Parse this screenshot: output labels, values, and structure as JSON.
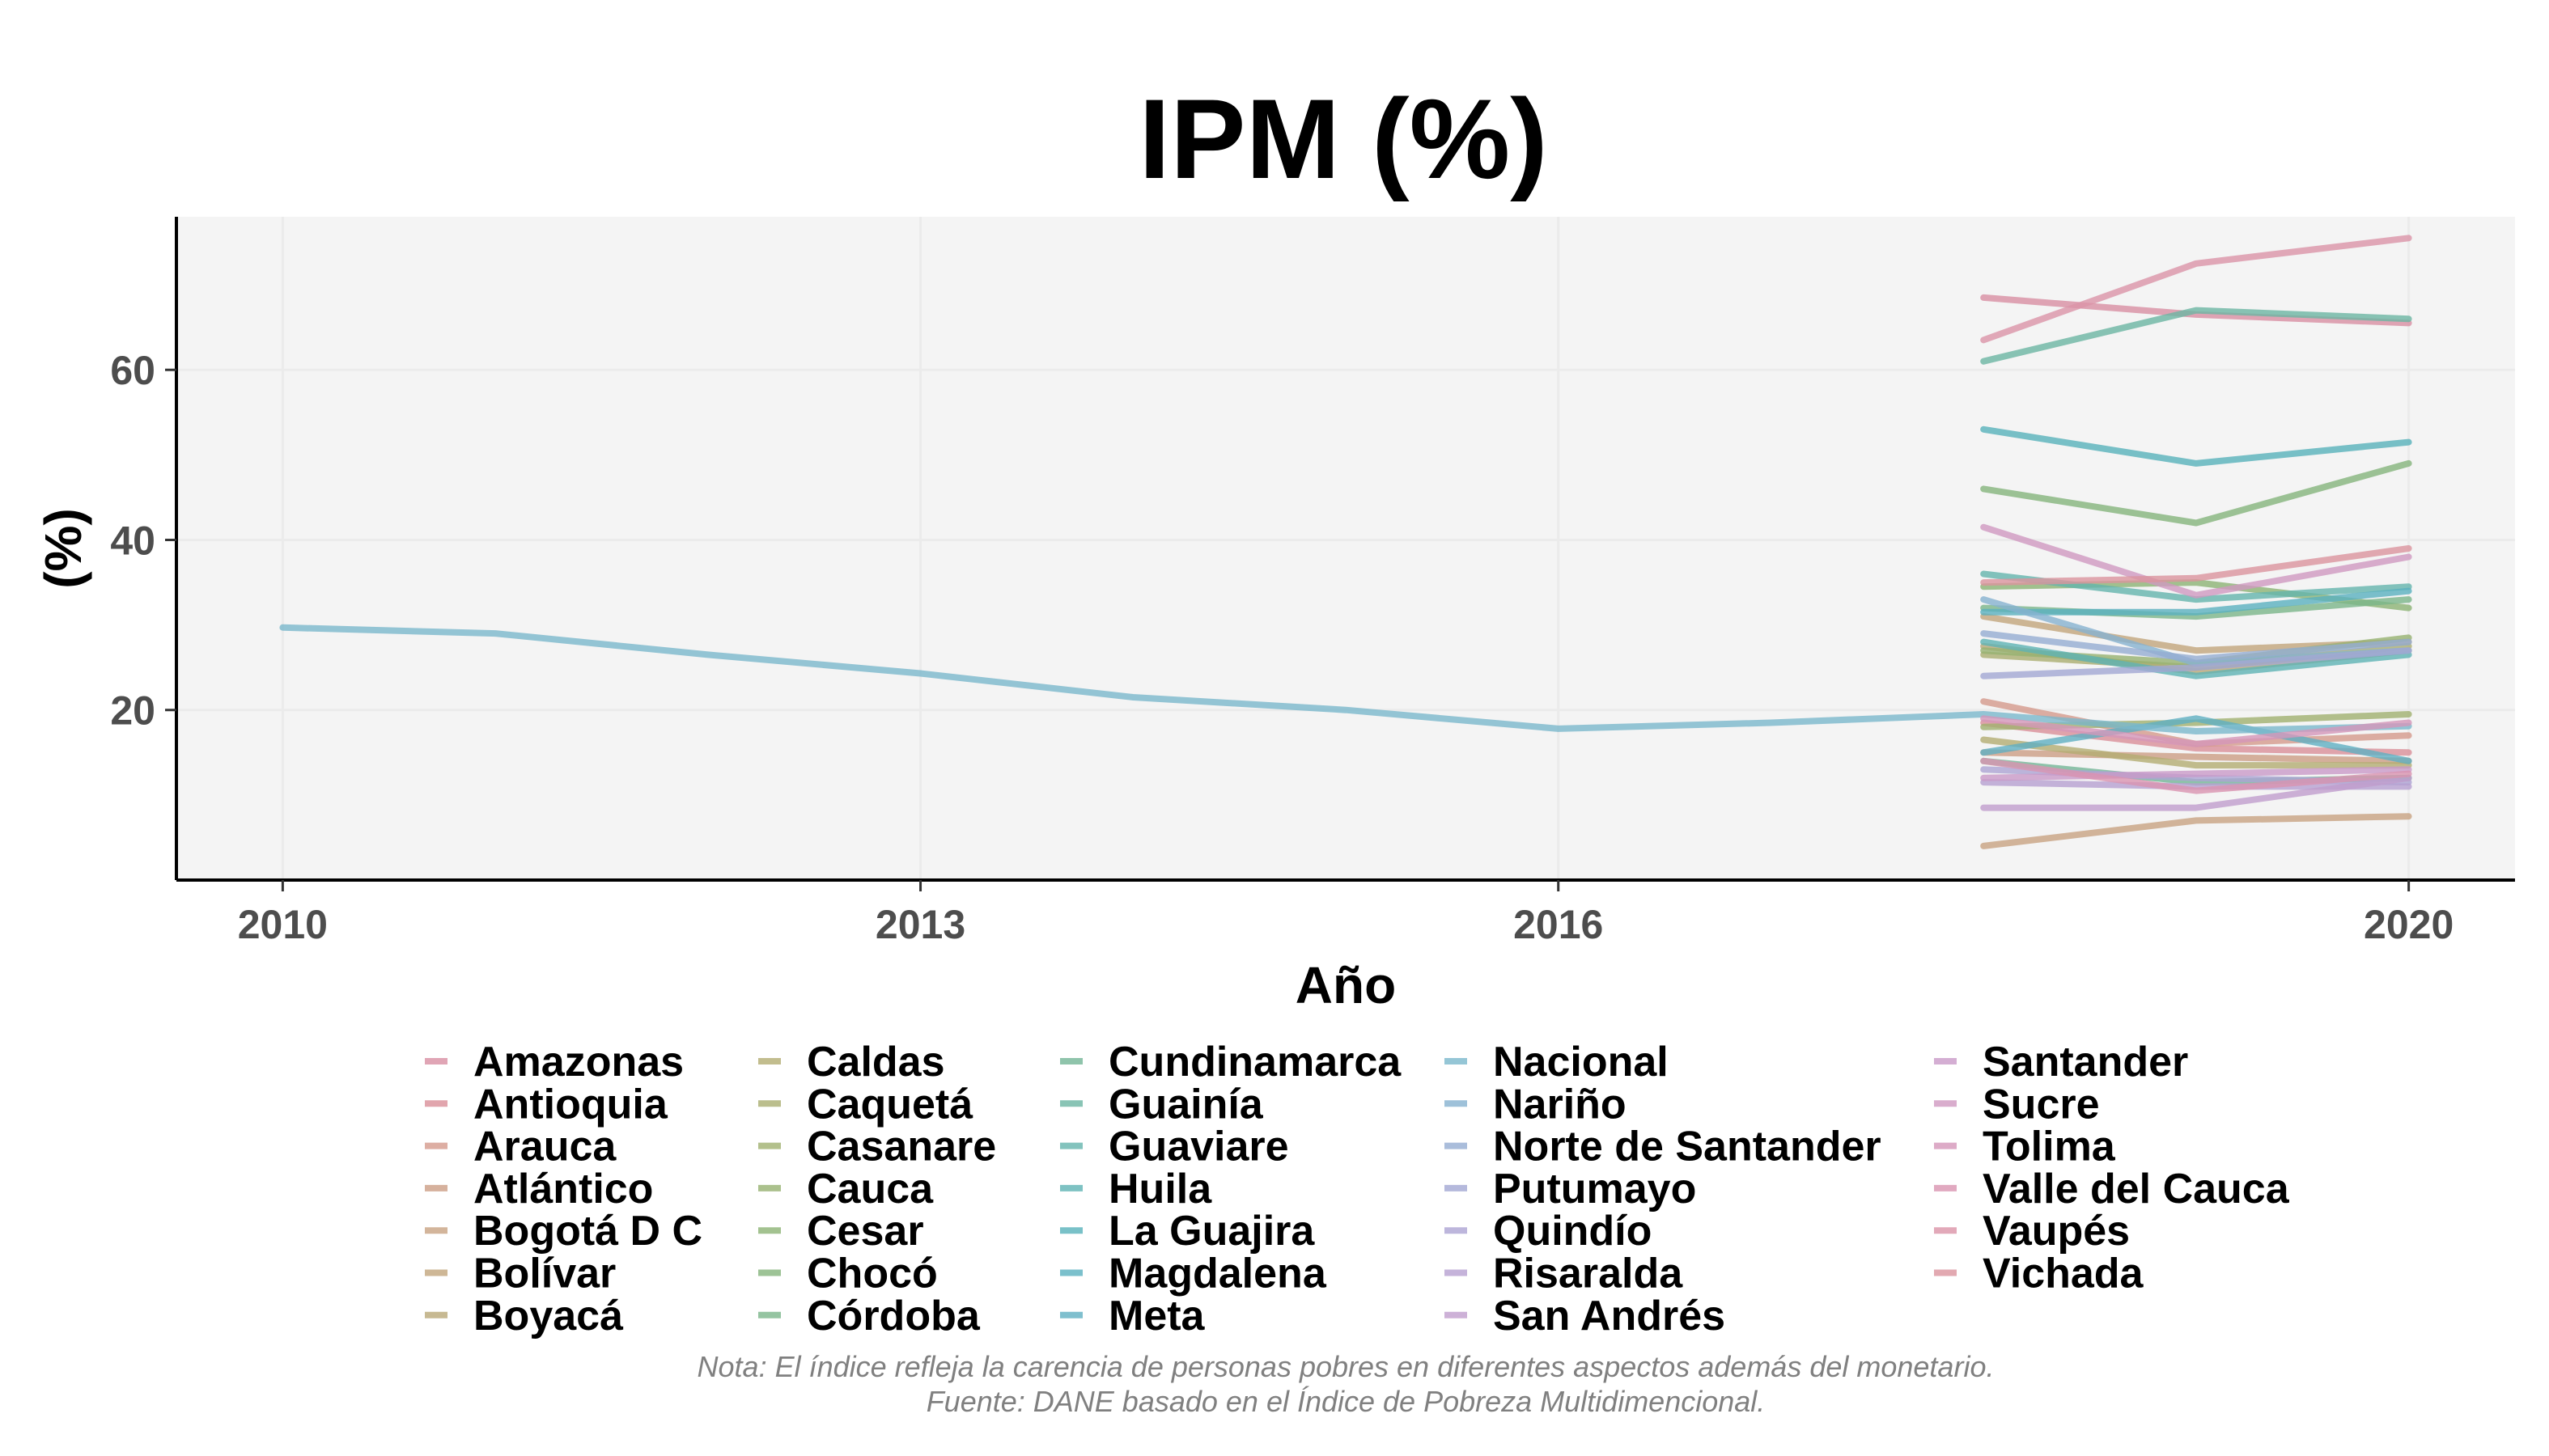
{
  "chart_data": {
    "type": "line",
    "title": "IPM (%)",
    "xlabel": "Año",
    "ylabel": "(%)",
    "xlim": [
      2009.5,
      2020.5
    ],
    "ylim": [
      0,
      78
    ],
    "xticks": [
      "2010",
      "2013",
      "2016",
      "2020"
    ],
    "yticks": [
      "20",
      "40",
      "60"
    ],
    "grid": true,
    "legend_position": "bottom",
    "series": [
      {
        "name": "Amazonas",
        "color": "#d88fa3",
        "x": [
          2018,
          2019,
          2020
        ],
        "y": [
          68.5,
          66.5,
          65.5
        ]
      },
      {
        "name": "Antioquia",
        "color": "#d98f99",
        "x": [
          2018,
          2019,
          2020
        ],
        "y": [
          18.5,
          15.5,
          15.0
        ]
      },
      {
        "name": "Arauca",
        "color": "#d49a8c",
        "x": [
          2018,
          2019,
          2020
        ],
        "y": [
          21.0,
          16.0,
          17.0
        ]
      },
      {
        "name": "Atlántico",
        "color": "#cc9e84",
        "x": [
          2018,
          2019,
          2020
        ],
        "y": [
          15.0,
          14.5,
          14.0
        ]
      },
      {
        "name": "Bogotá D C",
        "color": "#c8a282",
        "x": [
          2018,
          2019,
          2020
        ],
        "y": [
          4.0,
          7.0,
          7.5
        ]
      },
      {
        "name": "Bolívar",
        "color": "#c2a57c",
        "x": [
          2018,
          2019,
          2020
        ],
        "y": [
          31.0,
          27.0,
          28.0
        ]
      },
      {
        "name": "Boyacá",
        "color": "#b9a877",
        "x": [
          2018,
          2019,
          2020
        ],
        "y": [
          27.5,
          24.5,
          27.0
        ]
      },
      {
        "name": "Caldas",
        "color": "#b3ac72",
        "x": [
          2018,
          2019,
          2020
        ],
        "y": [
          16.5,
          13.5,
          13.5
        ]
      },
      {
        "name": "Caquetá",
        "color": "#aaae70",
        "x": [
          2018,
          2019,
          2020
        ],
        "y": [
          26.5,
          25.0,
          27.5
        ]
      },
      {
        "name": "Casanare",
        "color": "#a0b06f",
        "x": [
          2018,
          2019,
          2020
        ],
        "y": [
          18.0,
          18.5,
          19.5
        ]
      },
      {
        "name": "Cauca",
        "color": "#96b270",
        "x": [
          2018,
          2019,
          2020
        ],
        "y": [
          27.0,
          25.5,
          28.5
        ]
      },
      {
        "name": "Cesar",
        "color": "#8cb374",
        "x": [
          2018,
          2019,
          2020
        ],
        "y": [
          34.5,
          35.0,
          32.0
        ]
      },
      {
        "name": "Chocó",
        "color": "#84b47c",
        "x": [
          2018,
          2019,
          2020
        ],
        "y": [
          46.0,
          42.0,
          49.0
        ]
      },
      {
        "name": "Córdoba",
        "color": "#7bb589",
        "x": [
          2018,
          2019,
          2020
        ],
        "y": [
          32.0,
          31.0,
          33.0
        ]
      },
      {
        "name": "Cundinamarca",
        "color": "#73b596",
        "x": [
          2018,
          2019,
          2020
        ],
        "y": [
          14.0,
          11.5,
          12.0
        ]
      },
      {
        "name": "Guainía",
        "color": "#6cb5a2",
        "x": [
          2018,
          2019,
          2020
        ],
        "y": [
          61.0,
          67.0,
          66.0
        ]
      },
      {
        "name": "Guaviare",
        "color": "#64b4ad",
        "x": [
          2018,
          2019,
          2020
        ],
        "y": [
          36.0,
          33.0,
          34.5
        ]
      },
      {
        "name": "Huila",
        "color": "#5eb3b4",
        "x": [
          2018,
          2019,
          2020
        ],
        "y": [
          28.0,
          24.0,
          26.5
        ]
      },
      {
        "name": "La Guajira",
        "color": "#58b2ba",
        "x": [
          2018,
          2019,
          2020
        ],
        "y": [
          53.0,
          49.0,
          51.5
        ]
      },
      {
        "name": "Magdalena",
        "color": "#5ab0bf",
        "x": [
          2018,
          2019,
          2020
        ],
        "y": [
          31.5,
          31.5,
          34.0
        ]
      },
      {
        "name": "Meta",
        "color": "#5fafc2",
        "x": [
          2018,
          2019,
          2020
        ],
        "y": [
          15.0,
          19.0,
          14.0
        ]
      },
      {
        "name": "Nacional",
        "color": "#7ab8cc",
        "x": [
          2010,
          2011,
          2012,
          2013,
          2014,
          2015,
          2016,
          2017,
          2018,
          2019,
          2020
        ],
        "y": [
          29.7,
          29.0,
          26.5,
          24.3,
          21.5,
          20.0,
          17.8,
          18.5,
          19.5,
          17.5,
          18.1
        ]
      },
      {
        "name": "Nariño",
        "color": "#86b1cf",
        "x": [
          2018,
          2019,
          2020
        ],
        "y": [
          33.0,
          25.5,
          27.0
        ]
      },
      {
        "name": "Norte de Santander",
        "color": "#95acd2",
        "x": [
          2018,
          2019,
          2020
        ],
        "y": [
          29.0,
          26.0,
          28.0
        ]
      },
      {
        "name": "Putumayo",
        "color": "#a2a8d3",
        "x": [
          2018,
          2019,
          2020
        ],
        "y": [
          24.0,
          25.0,
          27.0
        ]
      },
      {
        "name": "Quindío",
        "color": "#ada4d3",
        "x": [
          2018,
          2019,
          2020
        ],
        "y": [
          13.0,
          12.0,
          11.5
        ]
      },
      {
        "name": "Risaralda",
        "color": "#b7a0d1",
        "x": [
          2018,
          2019,
          2020
        ],
        "y": [
          11.5,
          11.0,
          11.0
        ]
      },
      {
        "name": "San Andrés",
        "color": "#c19dcd",
        "x": [
          2018,
          2019,
          2020
        ],
        "y": [
          8.5,
          8.5,
          12.0
        ]
      },
      {
        "name": "Santander",
        "color": "#c99ac8",
        "x": [
          2018,
          2019,
          2020
        ],
        "y": [
          12.0,
          12.5,
          13.0
        ]
      },
      {
        "name": "Sucre",
        "color": "#d098c1",
        "x": [
          2018,
          2019,
          2020
        ],
        "y": [
          41.5,
          33.5,
          38.0
        ]
      },
      {
        "name": "Tolima",
        "color": "#d596b9",
        "x": [
          2018,
          2019,
          2020
        ],
        "y": [
          19.0,
          16.0,
          18.5
        ]
      },
      {
        "name": "Valle del Cauca",
        "color": "#d994b0",
        "x": [
          2018,
          2019,
          2020
        ],
        "y": [
          14.0,
          10.5,
          12.5
        ]
      },
      {
        "name": "Vaupés",
        "color": "#db93a7",
        "x": [
          2018,
          2019,
          2020
        ],
        "y": [
          63.5,
          72.5,
          75.5
        ]
      },
      {
        "name": "Vichada",
        "color": "#db939e",
        "x": [
          2018,
          2019,
          2020
        ],
        "y": [
          35.0,
          35.5,
          39.0
        ]
      }
    ]
  },
  "footer": {
    "note": "Nota: El índice refleja la carencia de personas pobres en diferentes aspectos además del monetario.",
    "source": "Fuente: DANE basado en el Índice de Pobreza Multidimencional."
  }
}
